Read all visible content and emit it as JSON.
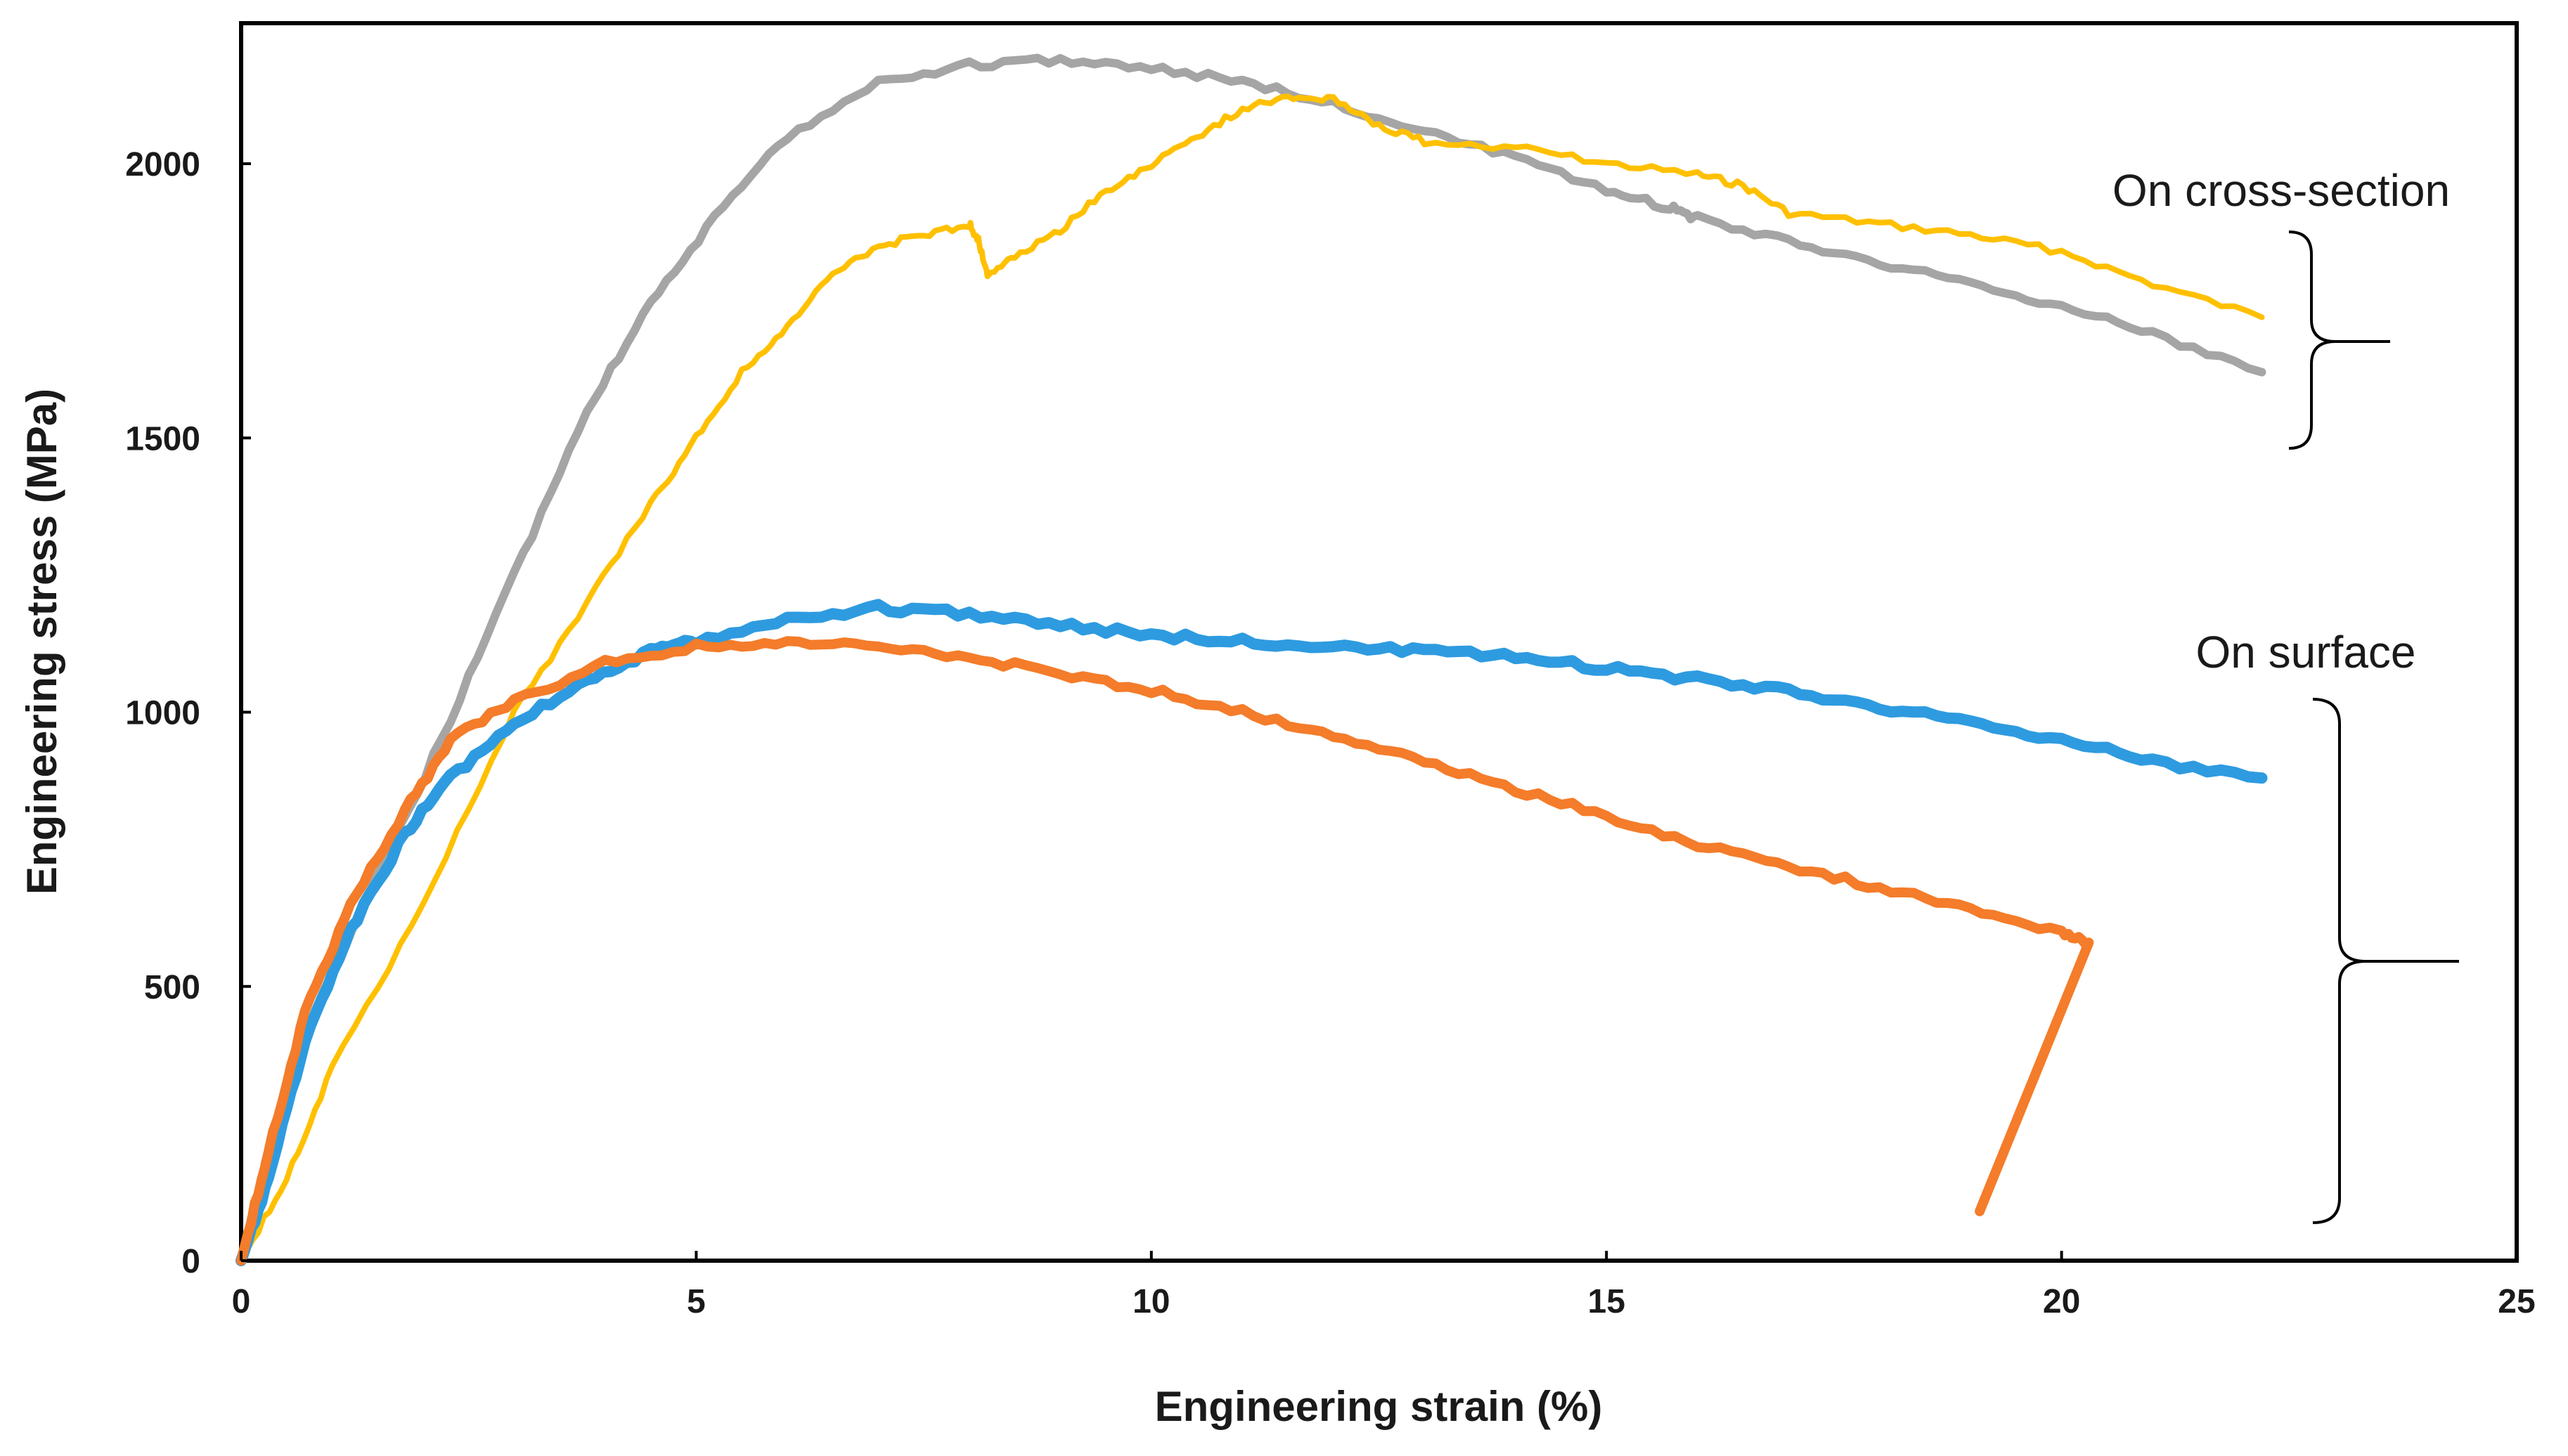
{
  "chart_data": {
    "type": "line",
    "title": "",
    "xlabel": "Engineering strain (%)",
    "ylabel": "Engineering stress (MPa)",
    "xlim": [
      0,
      25
    ],
    "ylim": [
      0,
      2200
    ],
    "xticks": [
      "0",
      "5",
      "10",
      "15",
      "20",
      "25"
    ],
    "yticks": [
      "0",
      "500",
      "1000",
      "1500",
      "2000"
    ],
    "grid": false,
    "legend": "none",
    "annotations": [
      {
        "text": "On cross-section",
        "groups": [
          "gray",
          "yellow"
        ]
      },
      {
        "text": "On surface",
        "groups": [
          "blue",
          "orange"
        ]
      }
    ],
    "series": [
      {
        "name": "gray",
        "group": "On cross-section",
        "color": "#a5a5a5",
        "points": [
          [
            0,
            0
          ],
          [
            0.3,
            200
          ],
          [
            0.8,
            450
          ],
          [
            1.5,
            700
          ],
          [
            2.2,
            950
          ],
          [
            3,
            1250
          ],
          [
            3.8,
            1550
          ],
          [
            4.5,
            1750
          ],
          [
            5.2,
            1900
          ],
          [
            6,
            2050
          ],
          [
            7,
            2150
          ],
          [
            8,
            2180
          ],
          [
            9,
            2190
          ],
          [
            10,
            2175
          ],
          [
            11,
            2150
          ],
          [
            12,
            2110
          ],
          [
            13,
            2060
          ],
          [
            14,
            2010
          ],
          [
            15,
            1950
          ],
          [
            15.7,
            1920
          ],
          [
            16,
            1900
          ],
          [
            17,
            1860
          ],
          [
            18,
            1820
          ],
          [
            19,
            1780
          ],
          [
            20,
            1740
          ],
          [
            21,
            1690
          ],
          [
            22.2,
            1620
          ]
        ]
      },
      {
        "name": "yellow",
        "group": "On cross-section",
        "color": "#ffc000",
        "points": [
          [
            0,
            0
          ],
          [
            0.5,
            150
          ],
          [
            1,
            350
          ],
          [
            2,
            650
          ],
          [
            3,
            1000
          ],
          [
            3.8,
            1200
          ],
          [
            4.5,
            1380
          ],
          [
            5,
            1500
          ],
          [
            5.5,
            1620
          ],
          [
            6,
            1700
          ],
          [
            6.5,
            1800
          ],
          [
            7,
            1850
          ],
          [
            7.5,
            1870
          ],
          [
            8,
            1890
          ],
          [
            8.1,
            1860
          ],
          [
            8.2,
            1800
          ],
          [
            8.5,
            1830
          ],
          [
            9,
            1880
          ],
          [
            9.5,
            1950
          ],
          [
            10,
            2000
          ],
          [
            10.5,
            2050
          ],
          [
            11,
            2100
          ],
          [
            11.5,
            2120
          ],
          [
            12,
            2120
          ],
          [
            12.5,
            2070
          ],
          [
            13,
            2040
          ],
          [
            14,
            2030
          ],
          [
            15,
            2000
          ],
          [
            16,
            1980
          ],
          [
            16.5,
            1960
          ],
          [
            17,
            1910
          ],
          [
            18,
            1890
          ],
          [
            19,
            1870
          ],
          [
            20,
            1840
          ],
          [
            21,
            1780
          ],
          [
            22.2,
            1720
          ]
        ]
      },
      {
        "name": "blue",
        "group": "On surface",
        "color": "#2e9be0",
        "points": [
          [
            0,
            0
          ],
          [
            0.3,
            150
          ],
          [
            0.7,
            400
          ],
          [
            1.2,
            600
          ],
          [
            1.8,
            780
          ],
          [
            2.3,
            880
          ],
          [
            3,
            980
          ],
          [
            3.8,
            1060
          ],
          [
            4.5,
            1110
          ],
          [
            5,
            1130
          ],
          [
            6,
            1170
          ],
          [
            7,
            1190
          ],
          [
            8,
            1180
          ],
          [
            9,
            1160
          ],
          [
            10,
            1140
          ],
          [
            11,
            1130
          ],
          [
            12,
            1120
          ],
          [
            13,
            1110
          ],
          [
            14,
            1100
          ],
          [
            15,
            1080
          ],
          [
            16,
            1060
          ],
          [
            17,
            1040
          ],
          [
            18,
            1010
          ],
          [
            19,
            980
          ],
          [
            20,
            950
          ],
          [
            21,
            910
          ],
          [
            22.2,
            880
          ]
        ]
      },
      {
        "name": "orange",
        "group": "On surface",
        "color": "#f47c2a",
        "points": [
          [
            0,
            0
          ],
          [
            0.3,
            200
          ],
          [
            0.7,
            450
          ],
          [
            1.2,
            650
          ],
          [
            1.8,
            820
          ],
          [
            2.3,
            950
          ],
          [
            3,
            1020
          ],
          [
            4,
            1090
          ],
          [
            5,
            1120
          ],
          [
            6,
            1125
          ],
          [
            7,
            1120
          ],
          [
            8,
            1100
          ],
          [
            9,
            1070
          ],
          [
            10,
            1040
          ],
          [
            11,
            1000
          ],
          [
            12,
            960
          ],
          [
            13,
            910
          ],
          [
            14,
            860
          ],
          [
            15,
            810
          ],
          [
            16,
            760
          ],
          [
            17,
            720
          ],
          [
            18,
            680
          ],
          [
            19,
            640
          ],
          [
            20,
            600
          ],
          [
            20.3,
            580
          ],
          [
            19.1,
            90
          ]
        ]
      }
    ]
  }
}
